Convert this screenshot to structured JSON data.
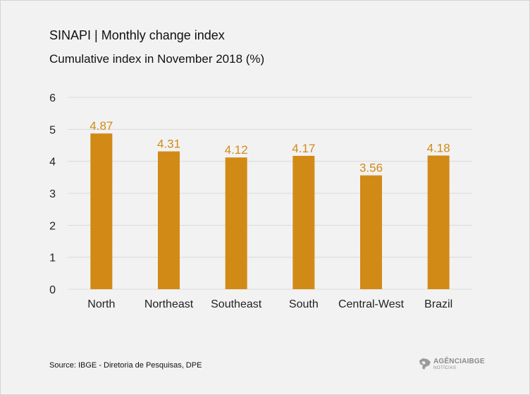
{
  "header": {
    "title": "SINAPI | Monthly change index",
    "subtitle": "Cumulative index in November 2018 (%)"
  },
  "footer": {
    "source": "Source: IBGE - Diretoria de Pesquisas, DPE",
    "brand_name": "AGÊNCIAIBGE",
    "brand_sub": "NOTÍCIAS"
  },
  "colors": {
    "bar": "#d28a17",
    "value_label": "#d28a17",
    "grid": "#d9d9d9",
    "axis_text": "#222222"
  },
  "chart_data": {
    "type": "bar",
    "title": "SINAPI | Monthly change index",
    "subtitle": "Cumulative index in November 2018 (%)",
    "categories": [
      "North",
      "Northeast",
      "Southeast",
      "South",
      "Central-West",
      "Brazil"
    ],
    "values": [
      4.87,
      4.31,
      4.12,
      4.17,
      3.56,
      4.18
    ],
    "value_labels": [
      "4.87",
      "4.31",
      "4.12",
      "4.17",
      "3.56",
      "4.18"
    ],
    "y_ticks": [
      "0",
      "1",
      "2",
      "3",
      "4",
      "5",
      "6"
    ],
    "ylim": [
      0,
      6
    ],
    "grid": true,
    "legend": "none",
    "xlabel": "",
    "ylabel": ""
  }
}
